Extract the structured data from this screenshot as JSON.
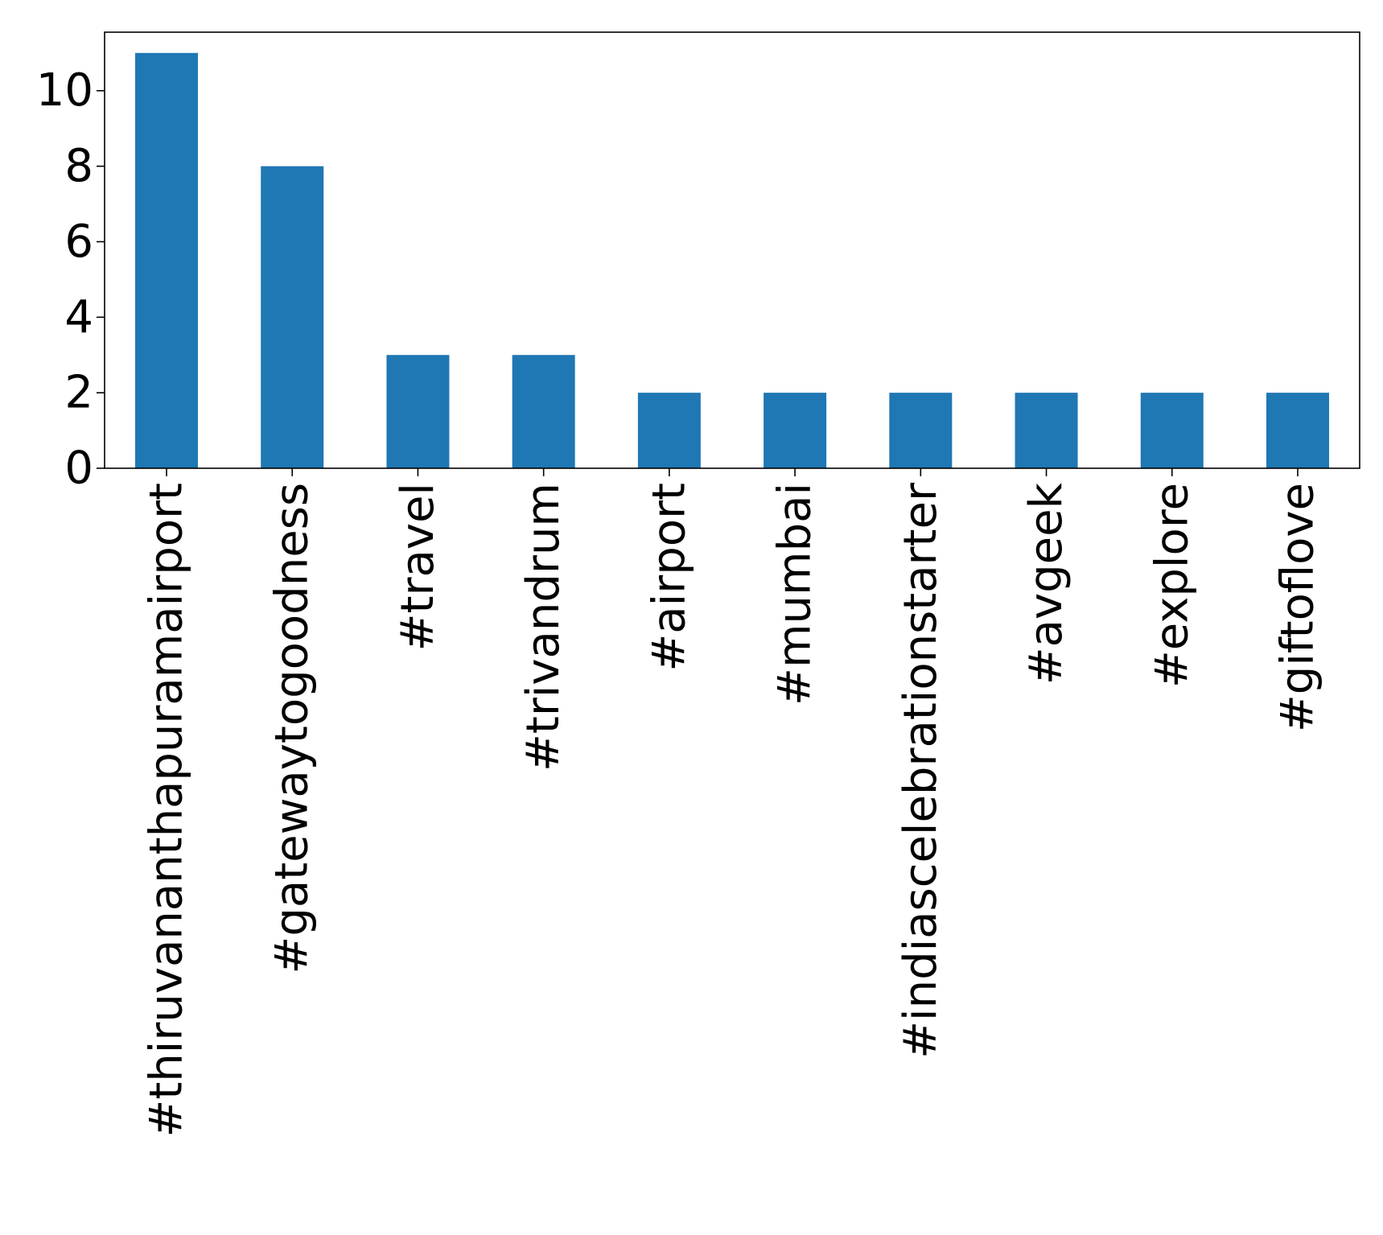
{
  "chart_data": {
    "type": "bar",
    "title": "",
    "xlabel": "",
    "ylabel": "",
    "categories": [
      "#thiruvananthapuramairport",
      "#gatewaytogoodness",
      "#travel",
      "#trivandrum",
      "#airport",
      "#mumbai",
      "#indiascelebrationstarter",
      "#avgeek",
      "#explore",
      "#giftoflove"
    ],
    "values": [
      11,
      8,
      3,
      3,
      2,
      2,
      2,
      2,
      2,
      2
    ],
    "ylim": [
      0,
      11.55
    ],
    "yticks": [
      0,
      2,
      4,
      6,
      8,
      10
    ],
    "ytick_labels": [
      "0",
      "2",
      "4",
      "6",
      "8",
      "10"
    ],
    "bar_color": "#1f77b4",
    "grid": false,
    "legend": "none",
    "x_tick_rotation": "vertical"
  }
}
